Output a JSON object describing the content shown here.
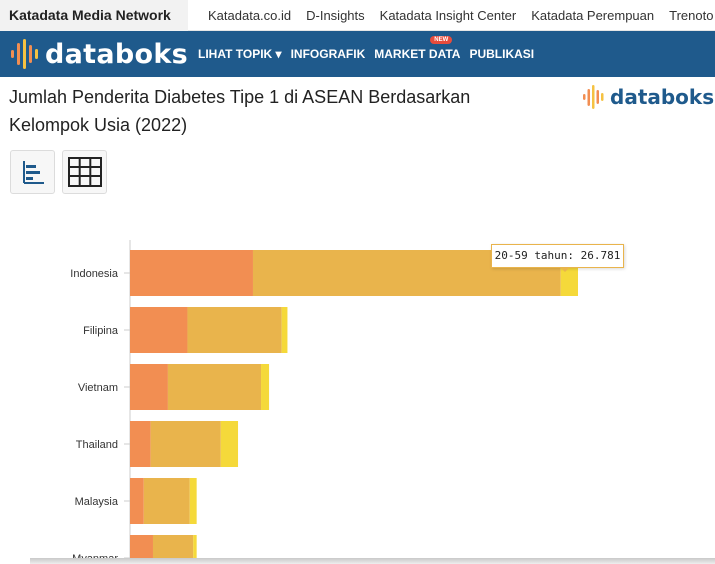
{
  "topbar": {
    "network_label": "Katadata Media Network",
    "links": [
      "Katadata.co.id",
      "D-Insights",
      "Katadata Insight Center",
      "Katadata Perempuan",
      "Trenoto"
    ]
  },
  "navbar": {
    "logo_text": "databoks",
    "items": [
      {
        "label": "LIHAT TOPIK ▾"
      },
      {
        "label": "INFOGRAFIK"
      },
      {
        "label": "MARKET DATA",
        "badge": "NEW"
      },
      {
        "label": "PUBLIKASI"
      }
    ]
  },
  "page": {
    "title": "Jumlah Penderita Diabetes Tipe 1 di ASEAN Berdasarkan Kelompok Usia (2022)",
    "watermark_logo": "databoks"
  },
  "view_buttons": [
    {
      "icon": "bar-chart-icon"
    },
    {
      "icon": "table-grid-icon"
    }
  ],
  "colors": {
    "nav_bg": "#1f5a8c",
    "series_0_19": "#f28e52",
    "series_20_59": "#e9b44c",
    "series_60_plus": "#f5d93a",
    "logo_dot_orange": "#f28e52",
    "logo_dot_yellow": "#f5c242"
  },
  "tooltip": {
    "text": "20-59 tahun: 26.781"
  },
  "chart_data": {
    "type": "bar",
    "orientation": "horizontal",
    "stacked": true,
    "title": "Jumlah Penderita Diabetes Tipe 1 di ASEAN Berdasarkan Kelompok Usia (2022)",
    "categories": [
      "Indonesia",
      "Filipina",
      "Vietnam",
      "Thailand",
      "Malaysia",
      "Myanmar"
    ],
    "series": [
      {
        "values": [
          10700,
          5000,
          3300,
          1800,
          1200,
          2000
        ]
      },
      {
        "values": [
          26781,
          8200,
          8100,
          6100,
          4000,
          3500
        ]
      },
      {
        "values": [
          1500,
          500,
          700,
          1500,
          600,
          300
        ]
      }
    ],
    "xlim": [
      0,
      40000
    ],
    "grid": false
  }
}
